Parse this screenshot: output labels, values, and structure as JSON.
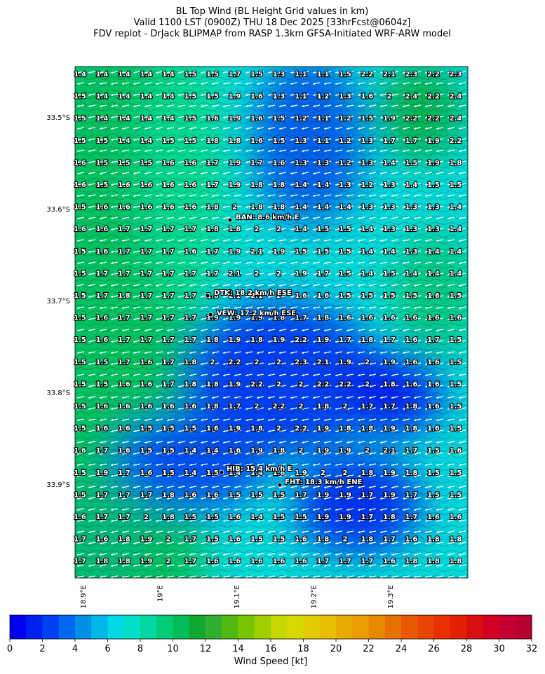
{
  "title": [
    "BL Top Wind (BL Height Grid values in km)",
    "Valid 1100 LST (0900Z) THU 18 Dec 2025 [33hrFcst@0604z]",
    "FDV replot - DrJack BLIPMAP from RASP 1.3km GFSA-Initiated WRF-ARW model"
  ],
  "grid": {
    "values": [
      [
        1.4,
        1.4,
        1.4,
        1.4,
        1.4,
        1.5,
        1.5,
        1.7,
        1.5,
        1.3,
        1.1,
        1.1,
        1.5,
        2.2,
        2.1,
        2.3,
        2.2,
        2.3
      ],
      [
        1.5,
        1.4,
        1.4,
        1.4,
        1.4,
        1.5,
        1.5,
        1.9,
        1.6,
        1.3,
        1.1,
        1.2,
        1.3,
        1.6,
        2.0,
        2.4,
        2.2,
        2.4
      ],
      [
        1.5,
        1.4,
        1.4,
        1.4,
        1.4,
        1.5,
        1.6,
        1.9,
        1.6,
        1.5,
        1.2,
        1.1,
        1.2,
        1.5,
        1.9,
        2.2,
        2.2,
        2.4
      ],
      [
        1.5,
        1.5,
        1.4,
        1.4,
        1.5,
        1.5,
        1.8,
        1.8,
        1.6,
        1.5,
        1.3,
        1.1,
        1.2,
        1.3,
        1.7,
        1.7,
        1.9,
        2.2
      ],
      [
        1.6,
        1.5,
        1.5,
        1.5,
        1.6,
        1.6,
        1.7,
        1.9,
        1.7,
        1.6,
        1.3,
        1.3,
        1.2,
        1.3,
        1.4,
        1.5,
        1.9,
        1.8
      ],
      [
        1.6,
        1.5,
        1.6,
        1.6,
        1.6,
        1.6,
        1.7,
        1.9,
        1.8,
        1.8,
        1.4,
        1.4,
        1.3,
        1.2,
        1.3,
        1.4,
        1.5,
        1.5
      ],
      [
        1.5,
        1.6,
        1.6,
        1.6,
        1.6,
        1.6,
        1.8,
        2.0,
        1.8,
        1.8,
        1.4,
        1.4,
        1.4,
        1.3,
        1.3,
        1.3,
        1.3,
        1.4
      ],
      [
        1.6,
        1.6,
        1.7,
        1.7,
        1.7,
        1.7,
        1.8,
        1.8,
        2.0,
        2.0,
        1.4,
        1.5,
        1.5,
        1.4,
        1.3,
        1.3,
        1.3,
        1.4
      ],
      [
        1.5,
        1.6,
        1.7,
        1.7,
        1.7,
        1.6,
        1.7,
        1.9,
        2.1,
        1.9,
        1.5,
        1.5,
        1.5,
        1.4,
        1.4,
        1.3,
        1.4,
        1.4
      ],
      [
        1.5,
        1.7,
        1.7,
        1.7,
        1.7,
        1.7,
        1.7,
        2.1,
        2.0,
        2.0,
        1.9,
        1.7,
        1.5,
        1.4,
        1.5,
        1.4,
        1.4,
        1.4
      ],
      [
        1.5,
        1.7,
        1.8,
        1.7,
        1.7,
        1.7,
        1.8,
        2.1,
        2.1,
        2.0,
        1.6,
        1.6,
        1.5,
        1.5,
        1.5,
        1.5,
        1.6,
        1.5
      ],
      [
        1.5,
        1.6,
        1.7,
        1.7,
        1.7,
        1.7,
        1.9,
        1.9,
        1.9,
        1.8,
        1.7,
        1.8,
        1.6,
        1.6,
        1.6,
        1.6,
        1.6,
        1.6
      ],
      [
        1.5,
        1.6,
        1.7,
        1.7,
        1.7,
        1.7,
        1.8,
        1.9,
        1.8,
        1.9,
        2.2,
        1.9,
        1.7,
        1.8,
        1.7,
        1.6,
        1.7,
        1.5
      ],
      [
        1.5,
        1.5,
        1.7,
        1.6,
        1.7,
        1.8,
        2.0,
        2.2,
        2.0,
        2.0,
        2.3,
        2.1,
        1.9,
        2.0,
        1.9,
        1.6,
        1.6,
        1.5
      ],
      [
        1.5,
        1.5,
        1.6,
        1.6,
        1.7,
        1.8,
        1.8,
        1.9,
        2.2,
        2.0,
        2.0,
        2.2,
        2.2,
        2.0,
        1.8,
        1.6,
        1.6,
        1.5
      ],
      [
        1.5,
        1.6,
        1.6,
        1.6,
        1.6,
        1.6,
        1.8,
        1.7,
        2.0,
        2.2,
        2.0,
        1.8,
        2.0,
        1.7,
        1.7,
        1.8,
        1.6,
        1.5
      ],
      [
        1.5,
        1.6,
        1.6,
        1.5,
        1.5,
        1.5,
        1.6,
        1.9,
        1.8,
        2.0,
        2.2,
        1.9,
        1.8,
        1.8,
        1.9,
        1.8,
        1.6,
        1.5
      ],
      [
        1.6,
        1.7,
        1.6,
        1.5,
        1.5,
        1.4,
        1.4,
        1.6,
        1.9,
        1.8,
        2.0,
        1.9,
        1.9,
        2.0,
        2.1,
        1.7,
        1.5,
        1.6
      ],
      [
        1.5,
        1.9,
        1.7,
        1.6,
        1.5,
        1.4,
        1.5,
        1.4,
        1.4,
        1.6,
        1.9,
        2.0,
        2.0,
        1.8,
        1.9,
        1.8,
        1.5,
        1.5
      ],
      [
        1.5,
        1.7,
        1.7,
        1.7,
        1.8,
        1.6,
        1.6,
        1.5,
        1.5,
        1.5,
        1.7,
        1.9,
        1.9,
        1.7,
        1.9,
        1.7,
        1.5,
        1.5
      ],
      [
        1.6,
        1.7,
        1.7,
        2.0,
        1.8,
        1.5,
        1.5,
        1.6,
        1.4,
        1.5,
        1.5,
        1.9,
        1.9,
        1.7,
        1.8,
        1.7,
        1.6,
        1.6
      ],
      [
        1.7,
        1.6,
        1.8,
        1.9,
        2.0,
        1.7,
        1.5,
        1.6,
        1.5,
        1.5,
        1.6,
        1.8,
        2.0,
        1.8,
        1.7,
        1.6,
        1.8,
        1.8
      ],
      [
        1.7,
        1.8,
        1.8,
        1.9,
        2.0,
        1.7,
        1.6,
        1.6,
        1.6,
        1.6,
        1.6,
        1.7,
        1.7,
        1.7,
        1.6,
        1.8,
        1.8,
        1.8
      ]
    ]
  },
  "stations": [
    {
      "label": "BAN: 8.6 km/h E"
    },
    {
      "label": "DTK: 18.2 km/h ESE"
    },
    {
      "label": "VEW: 17.2 km/h ESE"
    },
    {
      "label": "HIB: 15.4 km/h E"
    },
    {
      "label": "FHT: 18.3 km/h ENE"
    }
  ],
  "lat_labels": [
    "33.5°S",
    "33.6°S",
    "33.7°S",
    "33.8°S",
    "33.9°S"
  ],
  "lon_labels": [
    "18.9°E",
    "19°E",
    "19.1°E",
    "19.2°E",
    "19.3°E"
  ],
  "colorbar": {
    "label": "Wind Speed [kt]",
    "range": [
      0,
      32
    ],
    "ticks": [
      0,
      2,
      4,
      6,
      8,
      10,
      12,
      14,
      16,
      18,
      20,
      22,
      24,
      26,
      28,
      30,
      32
    ],
    "colors": [
      "#0000f0",
      "#0020f0",
      "#0040f0",
      "#0068ec",
      "#0090e8",
      "#00b8e8",
      "#00d8e4",
      "#00e0c8",
      "#00d8a0",
      "#00cc78",
      "#00bc58",
      "#10a830",
      "#30b030",
      "#50b810",
      "#78c400",
      "#a0d000",
      "#c4d800",
      "#d8d800",
      "#e0cc00",
      "#e8bc00",
      "#e8ac00",
      "#e89c00",
      "#e88800",
      "#e87000",
      "#e85800",
      "#e84400",
      "#e83000",
      "#e02000",
      "#d81010",
      "#d00020",
      "#c40030",
      "#b80030"
    ]
  }
}
